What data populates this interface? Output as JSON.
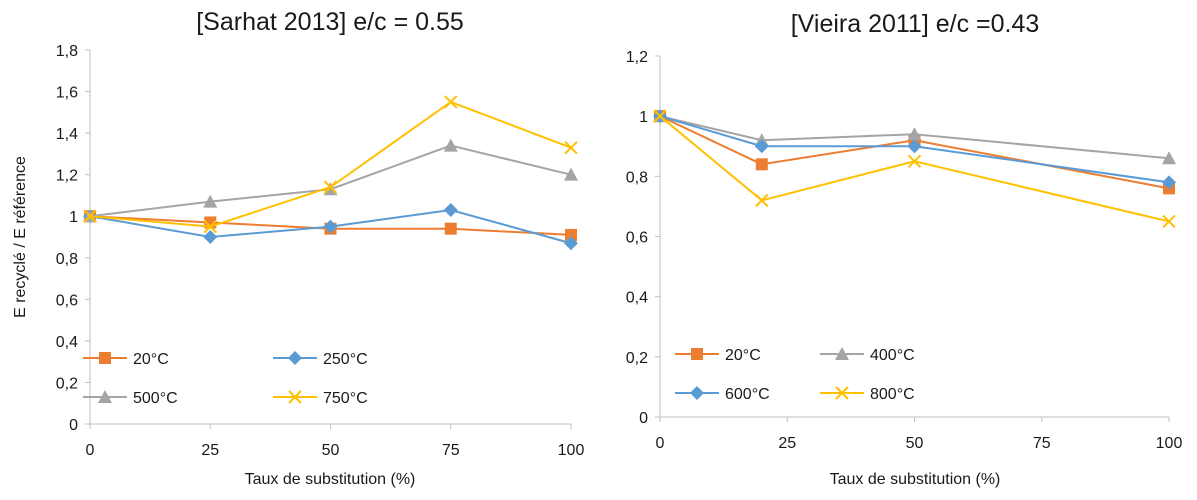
{
  "chart_data": [
    {
      "type": "line",
      "title": "[Sarhat 2013]  e/c = 0.55",
      "xlabel": "Taux de substitution (%)",
      "ylabel": "E recyclé / E référence",
      "x": [
        0,
        25,
        50,
        75,
        100
      ],
      "x_ticks": [
        "0",
        "25",
        "50",
        "75",
        "100"
      ],
      "y_ticks": [
        "0",
        "0,2",
        "0,4",
        "0,6",
        "0,8",
        "1",
        "1,2",
        "1,4",
        "1,6",
        "1,8"
      ],
      "xlim": [
        0,
        100
      ],
      "ylim": [
        0,
        1.8
      ],
      "grid": false,
      "legend_placement": "bottom-left",
      "series": [
        {
          "name": "20°C",
          "color": "#ED7D31",
          "marker": "square",
          "values": [
            1.0,
            0.97,
            0.94,
            0.94,
            0.91
          ]
        },
        {
          "name": "250°C",
          "color": "#5B9BD5",
          "marker": "diamond",
          "values": [
            1.0,
            0.9,
            0.95,
            1.03,
            0.87
          ]
        },
        {
          "name": "500°C",
          "color": "#A5A5A5",
          "marker": "triangle",
          "values": [
            1.0,
            1.07,
            1.13,
            1.34,
            1.2
          ]
        },
        {
          "name": "750°C",
          "color": "#FFC000",
          "marker": "x",
          "values": [
            1.0,
            0.95,
            1.14,
            1.55,
            1.33
          ]
        }
      ]
    },
    {
      "type": "line",
      "title": "[Vieira 2011] e/c =0.43",
      "xlabel": "Taux de substitution (%)",
      "ylabel": "",
      "x": [
        0,
        20,
        50,
        100
      ],
      "x_ticks": [
        "0",
        "25",
        "50",
        "75",
        "100"
      ],
      "y_ticks": [
        "0",
        "0,2",
        "0,4",
        "0,6",
        "0,8",
        "1",
        "1,2"
      ],
      "xlim": [
        0,
        100
      ],
      "ylim": [
        0,
        1.2
      ],
      "grid": false,
      "legend_placement": "bottom-left",
      "series": [
        {
          "name": "20°C",
          "color": "#ED7D31",
          "marker": "square",
          "values": [
            1.0,
            0.84,
            0.92,
            0.76
          ]
        },
        {
          "name": "400°C",
          "color": "#A5A5A5",
          "marker": "triangle",
          "values": [
            1.0,
            0.92,
            0.94,
            0.86
          ]
        },
        {
          "name": "600°C",
          "color": "#5B9BD5",
          "marker": "diamond",
          "values": [
            1.0,
            0.9,
            0.9,
            0.78
          ]
        },
        {
          "name": "800°C",
          "color": "#FFC000",
          "marker": "x",
          "values": [
            1.0,
            0.72,
            0.85,
            0.65
          ]
        }
      ]
    }
  ]
}
